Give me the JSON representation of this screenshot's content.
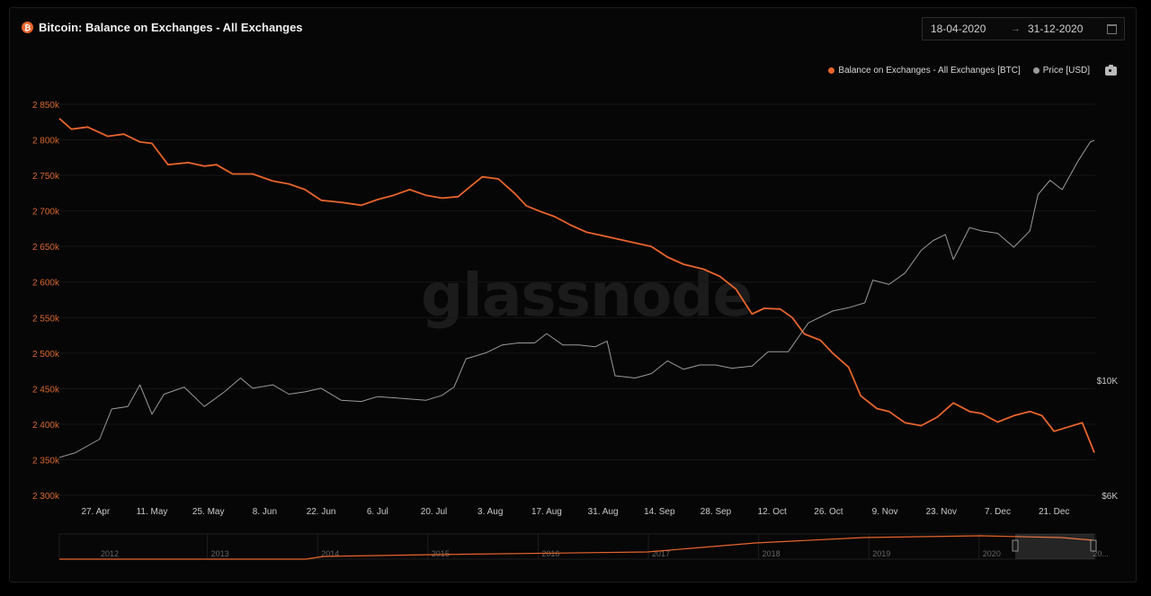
{
  "header": {
    "title": "Bitcoin: Balance on Exchanges - All Exchanges",
    "coin_icon": "bitcoin-icon"
  },
  "date_range": {
    "from": "18-04-2020",
    "arrow": "→",
    "to": "31-12-2020",
    "icon": "calendar-icon"
  },
  "legend": {
    "items": [
      {
        "label": "Balance on Exchanges - All Exchanges [BTC]",
        "color": "#e8642c"
      },
      {
        "label": "Price [USD]",
        "color": "#9a9a9a"
      }
    ],
    "camera_icon": "camera-icon"
  },
  "watermark": "glassnode",
  "chart_data": {
    "type": "line",
    "title": "Bitcoin: Balance on Exchanges - All Exchanges",
    "x_ticks": [
      "27. Apr",
      "11. May",
      "25. May",
      "8. Jun",
      "22. Jun",
      "6. Jul",
      "20. Jul",
      "3. Aug",
      "17. Aug",
      "31. Aug",
      "14. Sep",
      "28. Sep",
      "12. Oct",
      "26. Oct",
      "9. Nov",
      "23. Nov",
      "7. Dec",
      "21. Dec"
    ],
    "y_left_ticks": [
      "2 300k",
      "2 350k",
      "2 400k",
      "2 450k",
      "2 500k",
      "2 550k",
      "2 600k",
      "2 650k",
      "2 700k",
      "2 750k",
      "2 800k",
      "2 850k"
    ],
    "y_left_range": [
      2300000,
      2850000
    ],
    "y_right_ticks": [
      "$6K",
      "$10K"
    ],
    "y_right_scale": "log",
    "grid": true,
    "legend_position": "top-right",
    "series": [
      {
        "name": "Balance on Exchanges - All Exchanges [BTC]",
        "color": "#e8642c",
        "axis": "left",
        "points": [
          [
            "2020-04-18",
            2830000
          ],
          [
            "2020-04-21",
            2815000
          ],
          [
            "2020-04-25",
            2818000
          ],
          [
            "2020-04-30",
            2805000
          ],
          [
            "2020-05-04",
            2808000
          ],
          [
            "2020-05-08",
            2797000
          ],
          [
            "2020-05-11",
            2795000
          ],
          [
            "2020-05-15",
            2765000
          ],
          [
            "2020-05-20",
            2768000
          ],
          [
            "2020-05-24",
            2763000
          ],
          [
            "2020-05-27",
            2765000
          ],
          [
            "2020-05-31",
            2752000
          ],
          [
            "2020-06-05",
            2752000
          ],
          [
            "2020-06-10",
            2742000
          ],
          [
            "2020-06-14",
            2738000
          ],
          [
            "2020-06-18",
            2730000
          ],
          [
            "2020-06-22",
            2715000
          ],
          [
            "2020-06-27",
            2712000
          ],
          [
            "2020-07-02",
            2708000
          ],
          [
            "2020-07-06",
            2716000
          ],
          [
            "2020-07-10",
            2722000
          ],
          [
            "2020-07-14",
            2730000
          ],
          [
            "2020-07-18",
            2722000
          ],
          [
            "2020-07-22",
            2718000
          ],
          [
            "2020-07-26",
            2720000
          ],
          [
            "2020-07-29",
            2734000
          ],
          [
            "2020-08-01",
            2748000
          ],
          [
            "2020-08-05",
            2745000
          ],
          [
            "2020-08-09",
            2725000
          ],
          [
            "2020-08-12",
            2707000
          ],
          [
            "2020-08-16",
            2698000
          ],
          [
            "2020-08-19",
            2692000
          ],
          [
            "2020-08-23",
            2680000
          ],
          [
            "2020-08-27",
            2670000
          ],
          [
            "2020-08-31",
            2665000
          ],
          [
            "2020-09-04",
            2660000
          ],
          [
            "2020-09-08",
            2655000
          ],
          [
            "2020-09-12",
            2650000
          ],
          [
            "2020-09-16",
            2635000
          ],
          [
            "2020-09-20",
            2625000
          ],
          [
            "2020-09-25",
            2618000
          ],
          [
            "2020-09-29",
            2608000
          ],
          [
            "2020-10-03",
            2590000
          ],
          [
            "2020-10-07",
            2555000
          ],
          [
            "2020-10-10",
            2563000
          ],
          [
            "2020-10-14",
            2562000
          ],
          [
            "2020-10-17",
            2550000
          ],
          [
            "2020-10-20",
            2527000
          ],
          [
            "2020-10-24",
            2518000
          ],
          [
            "2020-10-27",
            2500000
          ],
          [
            "2020-10-31",
            2480000
          ],
          [
            "2020-11-03",
            2440000
          ],
          [
            "2020-11-07",
            2422000
          ],
          [
            "2020-11-10",
            2418000
          ],
          [
            "2020-11-14",
            2402000
          ],
          [
            "2020-11-18",
            2398000
          ],
          [
            "2020-11-22",
            2410000
          ],
          [
            "2020-11-26",
            2430000
          ],
          [
            "2020-11-30",
            2418000
          ],
          [
            "2020-12-03",
            2415000
          ],
          [
            "2020-12-07",
            2403000
          ],
          [
            "2020-12-11",
            2412000
          ],
          [
            "2020-12-15",
            2418000
          ],
          [
            "2020-12-18",
            2412000
          ],
          [
            "2020-12-21",
            2390000
          ],
          [
            "2020-12-25",
            2397000
          ],
          [
            "2020-12-28",
            2402000
          ],
          [
            "2020-12-31",
            2360000
          ]
        ]
      },
      {
        "name": "Price [USD]",
        "color": "#9a9a9a",
        "axis": "right",
        "points": [
          [
            "2020-04-18",
            7100
          ],
          [
            "2020-04-22",
            7250
          ],
          [
            "2020-04-28",
            7700
          ],
          [
            "2020-05-01",
            8800
          ],
          [
            "2020-05-05",
            8900
          ],
          [
            "2020-05-08",
            9800
          ],
          [
            "2020-05-11",
            8600
          ],
          [
            "2020-05-14",
            9400
          ],
          [
            "2020-05-19",
            9700
          ],
          [
            "2020-05-24",
            8900
          ],
          [
            "2020-05-29",
            9500
          ],
          [
            "2020-06-02",
            10100
          ],
          [
            "2020-06-05",
            9650
          ],
          [
            "2020-06-10",
            9800
          ],
          [
            "2020-06-14",
            9400
          ],
          [
            "2020-06-18",
            9500
          ],
          [
            "2020-06-22",
            9650
          ],
          [
            "2020-06-27",
            9150
          ],
          [
            "2020-07-02",
            9100
          ],
          [
            "2020-07-06",
            9300
          ],
          [
            "2020-07-10",
            9250
          ],
          [
            "2020-07-14",
            9200
          ],
          [
            "2020-07-18",
            9150
          ],
          [
            "2020-07-22",
            9350
          ],
          [
            "2020-07-25",
            9700
          ],
          [
            "2020-07-28",
            11000
          ],
          [
            "2020-08-02",
            11300
          ],
          [
            "2020-08-06",
            11700
          ],
          [
            "2020-08-10",
            11800
          ],
          [
            "2020-08-14",
            11800
          ],
          [
            "2020-08-17",
            12300
          ],
          [
            "2020-08-21",
            11700
          ],
          [
            "2020-08-25",
            11700
          ],
          [
            "2020-08-29",
            11600
          ],
          [
            "2020-09-01",
            11900
          ],
          [
            "2020-09-03",
            10200
          ],
          [
            "2020-09-08",
            10100
          ],
          [
            "2020-09-12",
            10300
          ],
          [
            "2020-09-16",
            10900
          ],
          [
            "2020-09-20",
            10500
          ],
          [
            "2020-09-24",
            10700
          ],
          [
            "2020-09-28",
            10700
          ],
          [
            "2020-10-02",
            10550
          ],
          [
            "2020-10-07",
            10650
          ],
          [
            "2020-10-11",
            11350
          ],
          [
            "2020-10-16",
            11350
          ],
          [
            "2020-10-21",
            12900
          ],
          [
            "2020-10-27",
            13600
          ],
          [
            "2020-10-31",
            13800
          ],
          [
            "2020-11-04",
            14100
          ],
          [
            "2020-11-06",
            15600
          ],
          [
            "2020-11-10",
            15300
          ],
          [
            "2020-11-14",
            16100
          ],
          [
            "2020-11-18",
            17800
          ],
          [
            "2020-11-21",
            18600
          ],
          [
            "2020-11-24",
            19100
          ],
          [
            "2020-11-26",
            17100
          ],
          [
            "2020-11-30",
            19700
          ],
          [
            "2020-12-03",
            19400
          ],
          [
            "2020-12-07",
            19200
          ],
          [
            "2020-12-11",
            18050
          ],
          [
            "2020-12-15",
            19400
          ],
          [
            "2020-12-17",
            22800
          ],
          [
            "2020-12-20",
            24300
          ],
          [
            "2020-12-23",
            23300
          ],
          [
            "2020-12-27",
            26500
          ],
          [
            "2020-12-30",
            28800
          ],
          [
            "2020-12-31",
            29000
          ]
        ]
      }
    ],
    "navigator": {
      "year_labels": [
        "2012",
        "2013",
        "2014",
        "2015",
        "2016",
        "2017",
        "2018",
        "2019",
        "2020",
        "20..."
      ],
      "series_color": "#e8642c",
      "selection_start": "2020-04-18",
      "selection_end": "2020-12-31"
    }
  }
}
